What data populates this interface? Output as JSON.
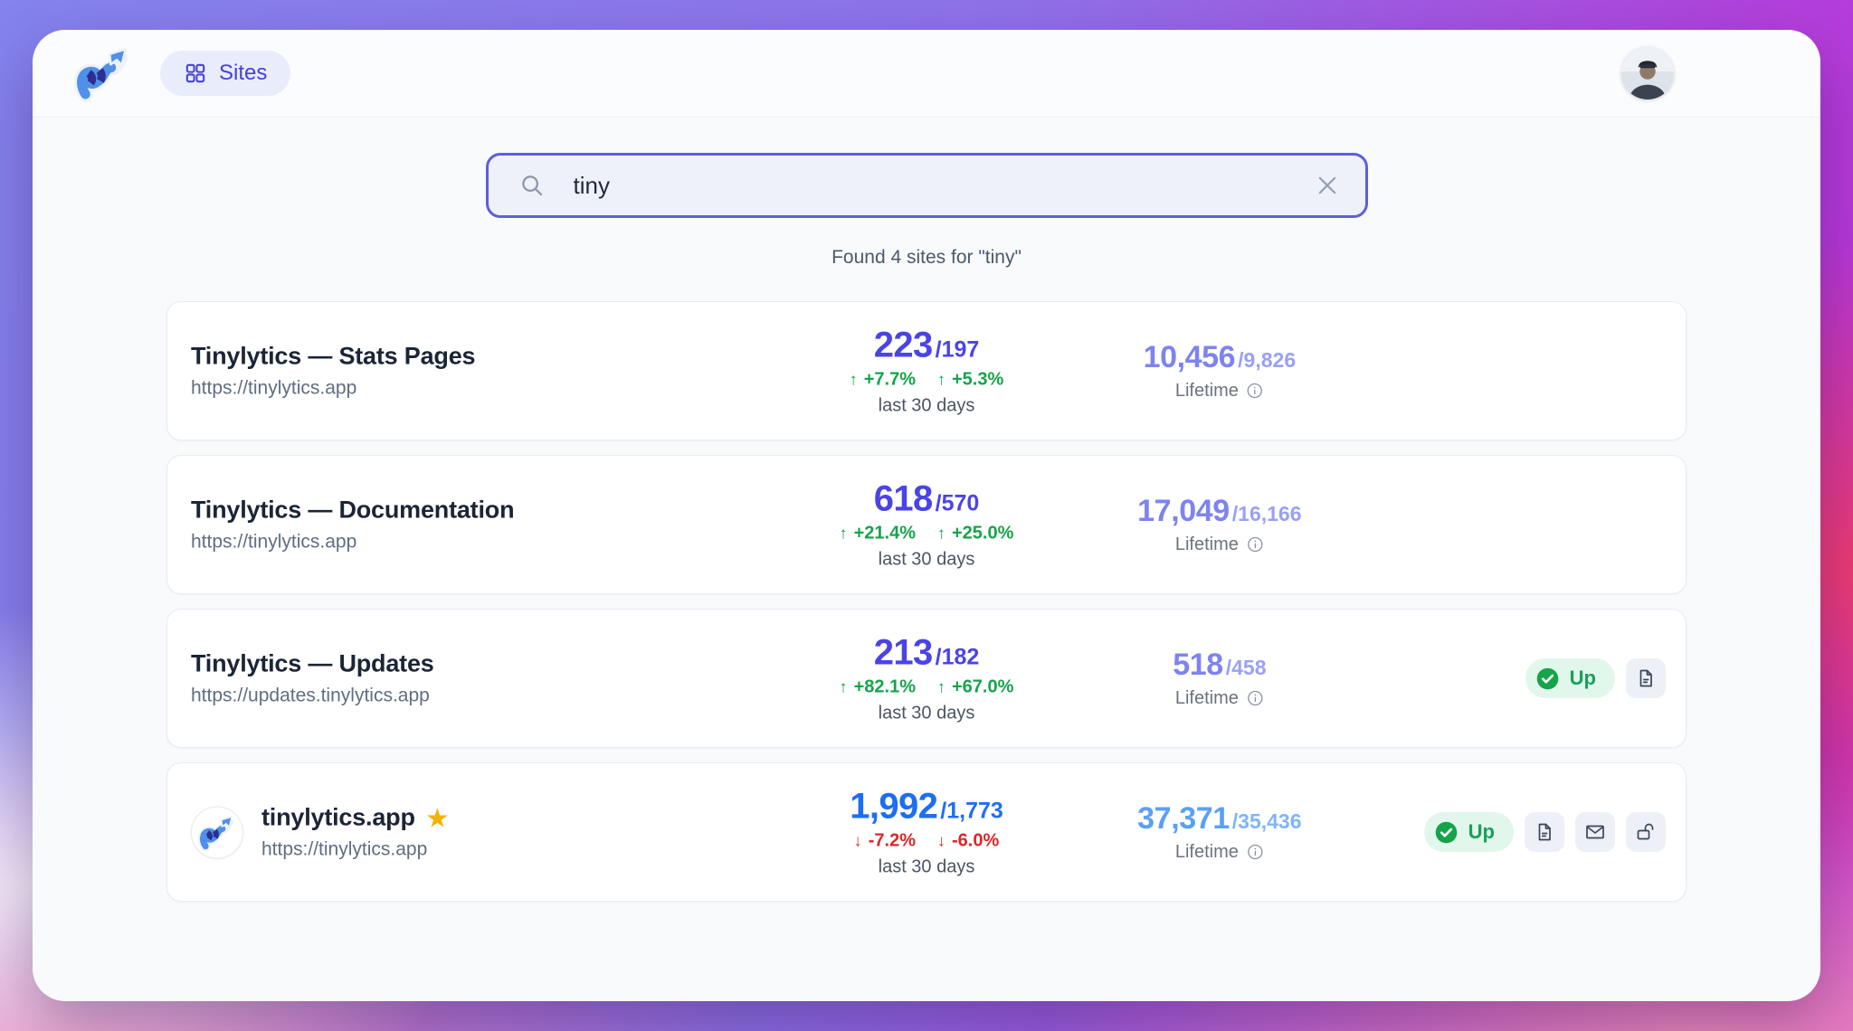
{
  "nav": {
    "sites_label": "Sites"
  },
  "search": {
    "value": "tiny",
    "results_text": "Found 4 sites for \"tiny\""
  },
  "status_labels": {
    "up": "Up"
  },
  "colors": {
    "search_border": "#5d5fd8",
    "indigo_accent": "#4a44e6",
    "blue_accent": "#1d6ef2",
    "green_up": "#16a34a",
    "red_down": "#dc2626",
    "up_badge_bg": "#e2f7eb",
    "gradient": [
      "#8583ee",
      "#c12cd6",
      "#f23d6c",
      "#f291bc"
    ]
  },
  "sites": [
    {
      "name": "Tinylytics — Stats Pages",
      "url": "https://tinylytics.app",
      "starred": false,
      "has_favicon": false,
      "period": {
        "current": "223",
        "previous": "/197",
        "deltas": [
          "+7.7%",
          "+5.3%"
        ],
        "direction": "up",
        "label": "last 30 days"
      },
      "lifetime": {
        "current": "10,456",
        "previous": "/9,826",
        "label": "Lifetime"
      },
      "colors": {
        "primary": "#4a44e6",
        "lifetime": "#7d83f0",
        "lifetime_sub": "#9aa0f5"
      },
      "status": null,
      "actions": []
    },
    {
      "name": "Tinylytics — Documentation",
      "url": "https://tinylytics.app",
      "starred": false,
      "has_favicon": false,
      "period": {
        "current": "618",
        "previous": "/570",
        "deltas": [
          "+21.4%",
          "+25.0%"
        ],
        "direction": "up",
        "label": "last 30 days"
      },
      "lifetime": {
        "current": "17,049",
        "previous": "/16,166",
        "label": "Lifetime"
      },
      "colors": {
        "primary": "#4a44e6",
        "lifetime": "#7d83f0",
        "lifetime_sub": "#9aa0f5"
      },
      "status": null,
      "actions": []
    },
    {
      "name": "Tinylytics — Updates",
      "url": "https://updates.tinylytics.app",
      "starred": false,
      "has_favicon": false,
      "period": {
        "current": "213",
        "previous": "/182",
        "deltas": [
          "+82.1%",
          "+67.0%"
        ],
        "direction": "up",
        "label": "last 30 days"
      },
      "lifetime": {
        "current": "518",
        "previous": "/458",
        "label": "Lifetime"
      },
      "colors": {
        "primary": "#4a44e6",
        "lifetime": "#7d83f0",
        "lifetime_sub": "#9aa0f5"
      },
      "status": "Up",
      "actions": [
        "document"
      ]
    },
    {
      "name": "tinylytics.app",
      "url": "https://tinylytics.app",
      "starred": true,
      "has_favicon": true,
      "period": {
        "current": "1,992",
        "previous": "/1,773",
        "deltas": [
          "-7.2%",
          "-6.0%"
        ],
        "direction": "down",
        "label": "last 30 days"
      },
      "lifetime": {
        "current": "37,371",
        "previous": "/35,436",
        "label": "Lifetime"
      },
      "colors": {
        "primary": "#1d6ef2",
        "lifetime": "#5aa0f8",
        "lifetime_sub": "#7fb5fa"
      },
      "status": "Up",
      "actions": [
        "document",
        "mail",
        "unlock"
      ]
    }
  ]
}
